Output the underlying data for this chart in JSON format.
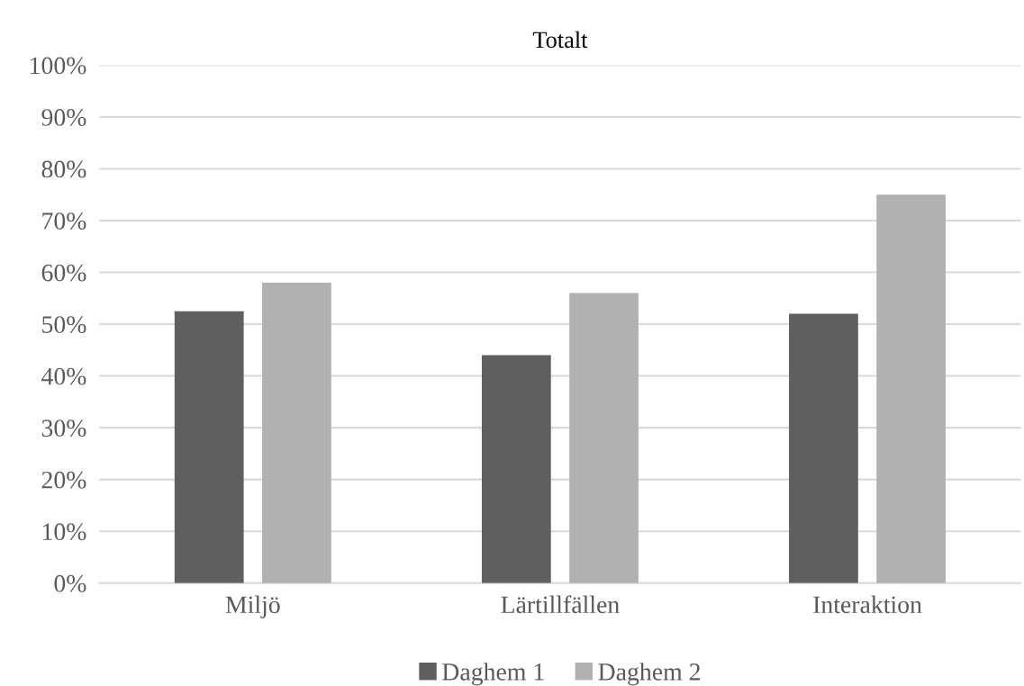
{
  "chart_data": {
    "type": "bar",
    "title": "Totalt",
    "categories": [
      "Miljö",
      "Lärtillfällen",
      "Interaktion"
    ],
    "series": [
      {
        "name": "Daghem 1",
        "color": "#5f5f5f",
        "values": [
          52.5,
          44,
          52
        ]
      },
      {
        "name": "Daghem 2",
        "color": "#b1b1b1",
        "values": [
          58,
          56,
          75
        ]
      }
    ],
    "ylim": [
      0,
      100
    ],
    "yticks": [
      {
        "value": 0,
        "label": "0%"
      },
      {
        "value": 10,
        "label": "10%"
      },
      {
        "value": 20,
        "label": "20%"
      },
      {
        "value": 30,
        "label": "30%"
      },
      {
        "value": 40,
        "label": "40%"
      },
      {
        "value": 50,
        "label": "50%"
      },
      {
        "value": 60,
        "label": "60%"
      },
      {
        "value": 70,
        "label": "70%"
      },
      {
        "value": 80,
        "label": "80%"
      },
      {
        "value": 90,
        "label": "90%"
      },
      {
        "value": 100,
        "label": "100%"
      }
    ],
    "grid": "y",
    "legend": "bottom"
  }
}
